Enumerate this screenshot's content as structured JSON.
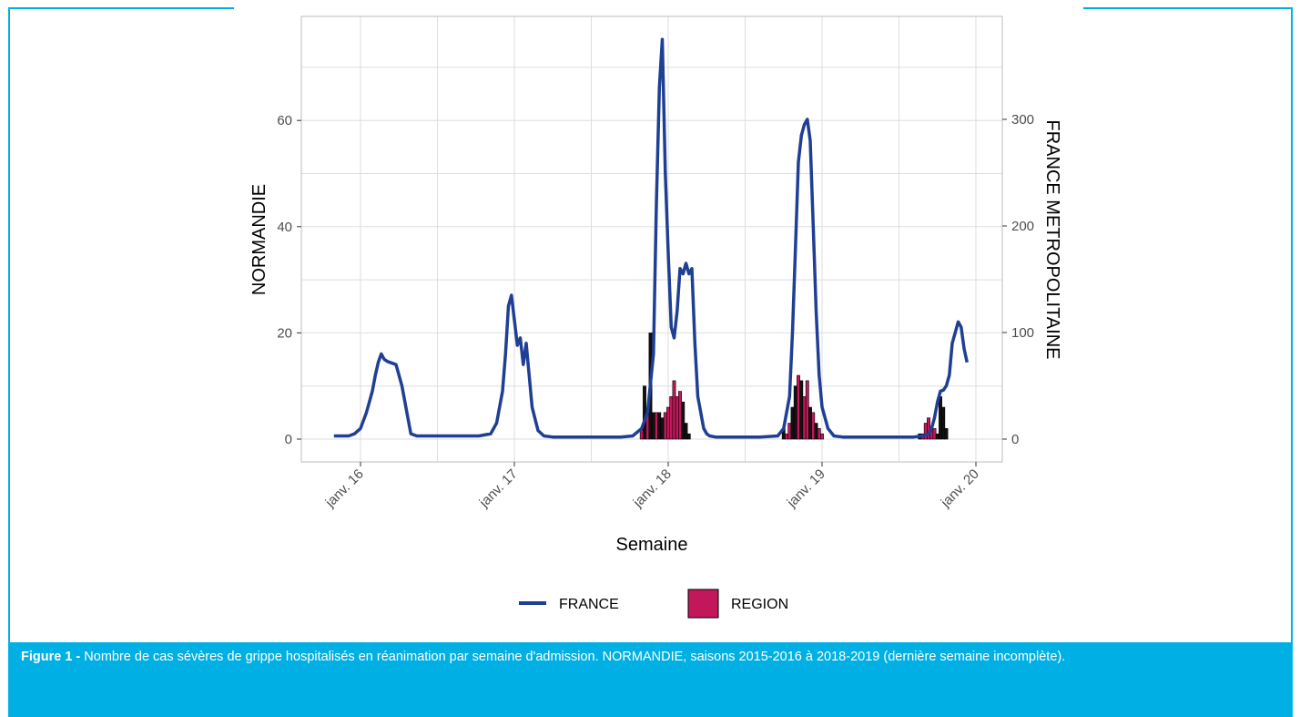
{
  "caption": {
    "prefix": "Figure 1 -",
    "text": " Nombre de cas sévères de grippe hospitalisés en réanimation par semaine d'admission. NORMANDIE, saisons 2015-2016 à 2018-2019 (dernière semaine incomplète)."
  },
  "chart_data": {
    "type": "bar+line",
    "xlabel": "Semaine",
    "ylabel_left": "NORMANDIE",
    "ylabel_right": "FRANCE METROPOLITAINE",
    "ylim_left": [
      0,
      75
    ],
    "ylim_right": [
      0,
      380
    ],
    "yticks_left": [
      0,
      20,
      40,
      60
    ],
    "yticks_right": [
      0,
      100,
      200,
      300
    ],
    "x_tick_labels": [
      "janv. 16",
      "janv. 17",
      "janv. 18",
      "janv. 19",
      "janv. 20"
    ],
    "grid": true,
    "legend_position": "bottom",
    "legend": [
      "FRANCE",
      "REGION"
    ],
    "colors": {
      "france": "#1f3f94",
      "region": "#c2185b",
      "region_alt": "#111111",
      "grid": "#dedede",
      "panel_border": "#bdbdbd",
      "caption_bg": "#00b0e4"
    },
    "series_france": {
      "name": "FRANCE",
      "axis": "right",
      "x_weeks": [
        -9,
        -6,
        -4,
        -2,
        0,
        2,
        4,
        5,
        6,
        7,
        8,
        9,
        10,
        12,
        14,
        16,
        17,
        19,
        24,
        33,
        40,
        44,
        46,
        48,
        49,
        50,
        51,
        52,
        53,
        54,
        55,
        56,
        58,
        60,
        62,
        65,
        70,
        80,
        88,
        92,
        95,
        97,
        99,
        100,
        101,
        102,
        103,
        104,
        105,
        106,
        107,
        108,
        109,
        110,
        111,
        112,
        113,
        114,
        116,
        117,
        118,
        120,
        125,
        135,
        141,
        143,
        145,
        146,
        147,
        148,
        149,
        150,
        151,
        152,
        153,
        154,
        155,
        156,
        158,
        160,
        163,
        168,
        178,
        187,
        190,
        192,
        193,
        194,
        195,
        196,
        197,
        198,
        199,
        200,
        201,
        202,
        203,
        204,
        205
      ],
      "values": [
        3,
        3,
        3,
        5,
        10,
        25,
        45,
        60,
        72,
        80,
        75,
        73,
        72,
        70,
        50,
        20,
        5,
        3,
        3,
        3,
        3,
        5,
        15,
        45,
        80,
        125,
        135,
        112,
        88,
        95,
        70,
        90,
        30,
        8,
        3,
        2,
        2,
        2,
        2,
        3,
        10,
        25,
        80,
        220,
        330,
        375,
        250,
        175,
        105,
        95,
        120,
        160,
        155,
        165,
        155,
        160,
        90,
        40,
        10,
        5,
        3,
        2,
        2,
        2,
        3,
        10,
        40,
        100,
        180,
        260,
        285,
        295,
        300,
        280,
        200,
        120,
        60,
        30,
        10,
        3,
        2,
        2,
        2,
        2,
        3,
        5,
        10,
        20,
        35,
        45,
        46,
        50,
        60,
        90,
        100,
        110,
        105,
        85,
        72
      ]
    },
    "series_region": {
      "name": "REGION",
      "axis": "left",
      "x_weeks": [
        95,
        96,
        97,
        98,
        99,
        100,
        101,
        102,
        103,
        104,
        105,
        106,
        107,
        108,
        109,
        110,
        111,
        112,
        113,
        114,
        143,
        144,
        145,
        146,
        147,
        148,
        149,
        150,
        151,
        152,
        153,
        154,
        155,
        156,
        189,
        190,
        191,
        192,
        193,
        194,
        195,
        196,
        197,
        198,
        199
      ],
      "values": [
        2,
        10,
        5,
        20,
        5,
        5,
        5,
        4,
        5,
        6,
        8,
        11,
        8,
        9,
        7,
        3,
        1,
        0,
        0,
        0,
        2,
        1,
        3,
        6,
        10,
        12,
        11,
        8,
        11,
        6,
        5,
        3,
        2,
        1,
        1,
        1,
        3,
        4,
        2,
        2,
        1,
        8,
        6,
        2,
        0
      ],
      "black_weeks": [
        96,
        98,
        99,
        101,
        102,
        109,
        110,
        111,
        143,
        146,
        147,
        149,
        152,
        154,
        189,
        195,
        196,
        197,
        198
      ]
    }
  }
}
